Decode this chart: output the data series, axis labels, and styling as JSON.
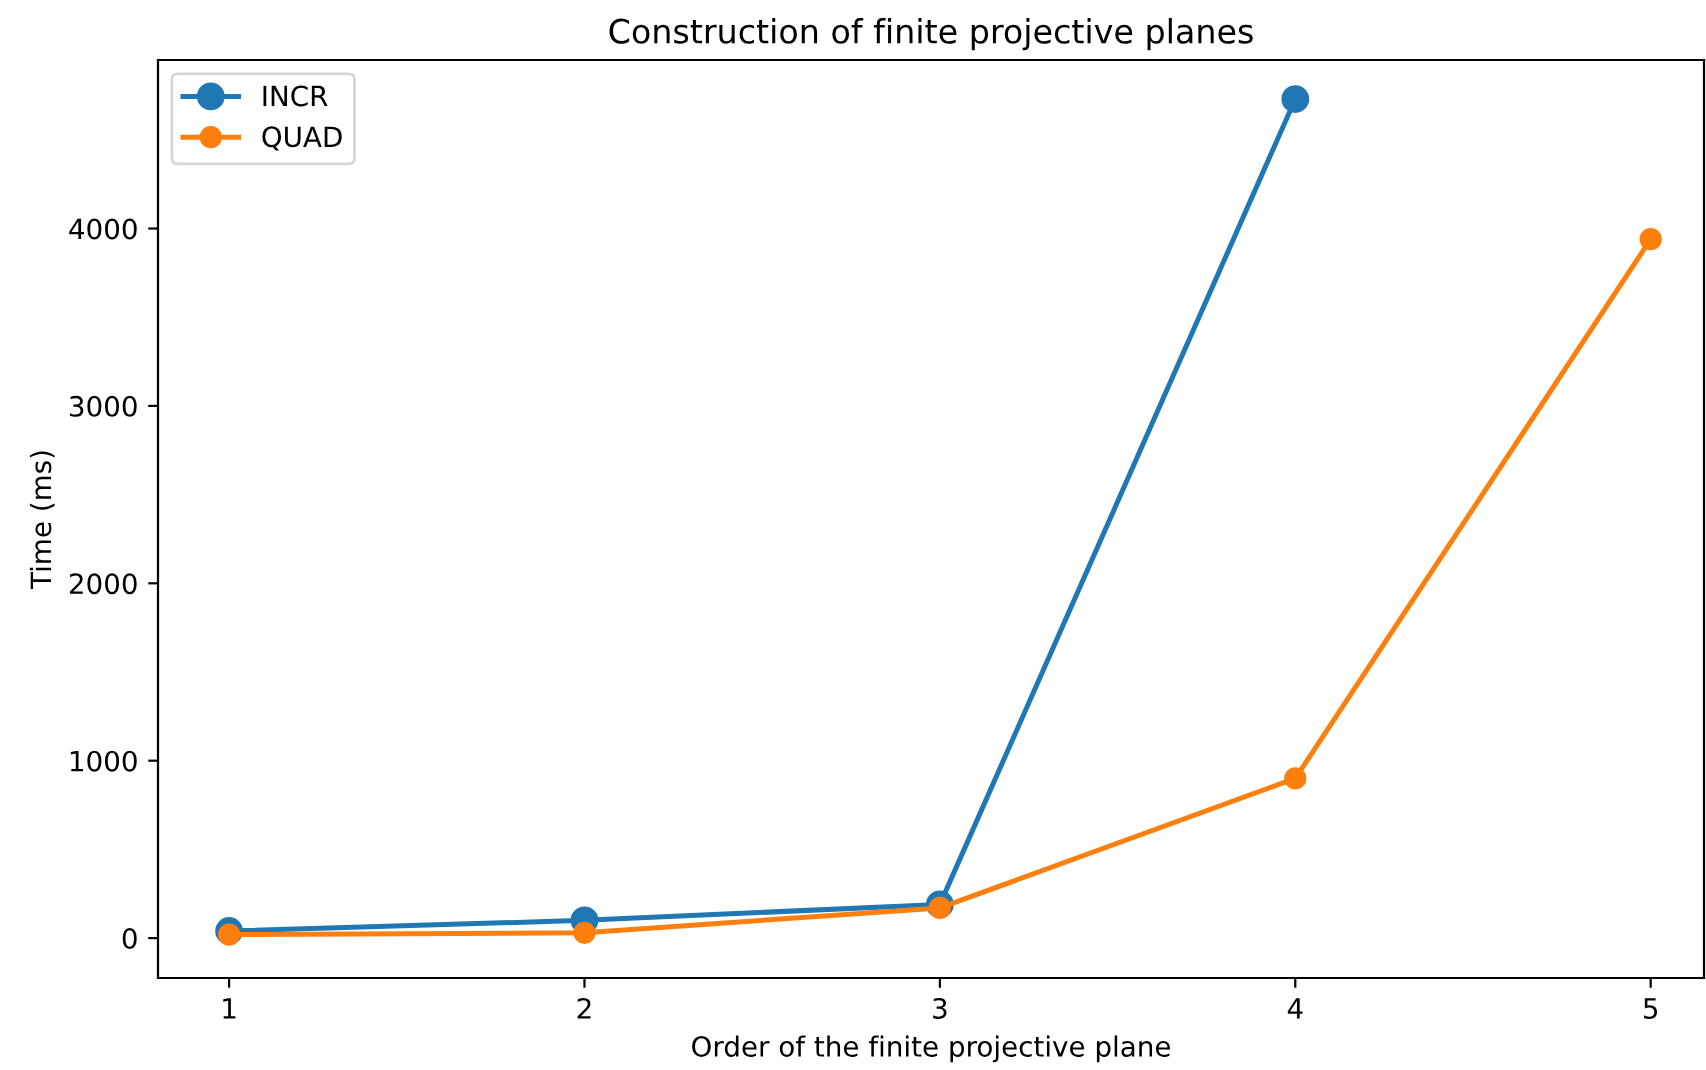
{
  "chart_data": {
    "type": "line",
    "title": "Construction of finite projective planes",
    "xlabel": "Order of the finite projective plane",
    "ylabel": "Time (ms)",
    "x": [
      1,
      2,
      3,
      4,
      5
    ],
    "series": [
      {
        "name": "INCR",
        "color": "#1f77b4",
        "x": [
          1,
          2,
          3,
          4
        ],
        "values": [
          40,
          100,
          190,
          4730
        ]
      },
      {
        "name": "QUAD",
        "color": "#ff7f0e",
        "values": [
          20,
          30,
          170,
          900,
          3940
        ]
      }
    ],
    "xlim": [
      0.8,
      5.15
    ],
    "ylim": [
      -225,
      4950
    ],
    "xticks": [
      1,
      2,
      3,
      4,
      5
    ],
    "yticks": [
      0,
      1000,
      2000,
      3000,
      4000
    ],
    "marker": "circle",
    "line_style": "solid",
    "legend": "top left",
    "grid": false
  }
}
